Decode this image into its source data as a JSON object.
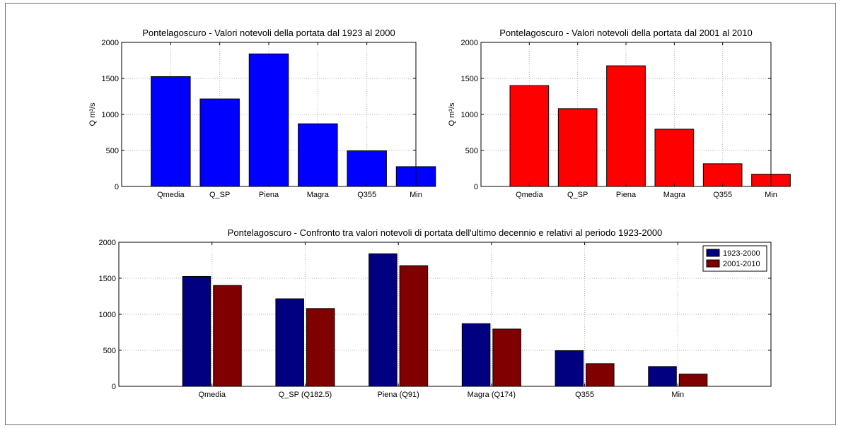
{
  "colors": {
    "chart1": "#0000ff",
    "chart2": "#ff0000",
    "series1923": "#000080",
    "series2001": "#800000",
    "grid": "#b0b0b0"
  },
  "chart_data": [
    {
      "type": "bar",
      "title": "Pontelagoscuro - Valori notevoli della portata dal 1923 al 2000",
      "ylabel": "Q m³/s",
      "categories": [
        "Qmedia",
        "Q_SP",
        "Piena",
        "Magra",
        "Q355",
        "Min"
      ],
      "values": [
        1525,
        1215,
        1840,
        870,
        495,
        275
      ],
      "ylim": [
        0,
        2000
      ],
      "yticks": [
        "0",
        "500",
        "1000",
        "1500",
        "2000"
      ],
      "grid": true
    },
    {
      "type": "bar",
      "title": "Pontelagoscuro - Valori notevoli della portata dal 2001 al 2010",
      "ylabel": "Q m³/s",
      "categories": [
        "Qmedia",
        "Q_SP",
        "Piena",
        "Magra",
        "Q355",
        "Min"
      ],
      "values": [
        1400,
        1080,
        1675,
        795,
        315,
        170
      ],
      "ylim": [
        0,
        2000
      ],
      "yticks": [
        "0",
        "500",
        "1000",
        "1500",
        "2000"
      ],
      "grid": true
    },
    {
      "type": "bar",
      "title": "Pontelagoscuro - Confronto tra valori notevoli di portata dell'ultimo decennio e relativi al periodo 1923-2000",
      "ylabel": "",
      "categories": [
        "Qmedia",
        "Q_SP (Q182.5)",
        "Piena (Q91)",
        "Magra (Q174)",
        "Q355",
        "Min"
      ],
      "series": [
        {
          "name": "1923-2000",
          "values": [
            1525,
            1215,
            1840,
            870,
            495,
            275
          ]
        },
        {
          "name": "2001-2010",
          "values": [
            1400,
            1080,
            1675,
            795,
            315,
            170
          ]
        }
      ],
      "ylim": [
        0,
        2000
      ],
      "yticks": [
        "0",
        "500",
        "1000",
        "1500",
        "2000"
      ],
      "grid": true,
      "legend_position": "top-right"
    }
  ]
}
